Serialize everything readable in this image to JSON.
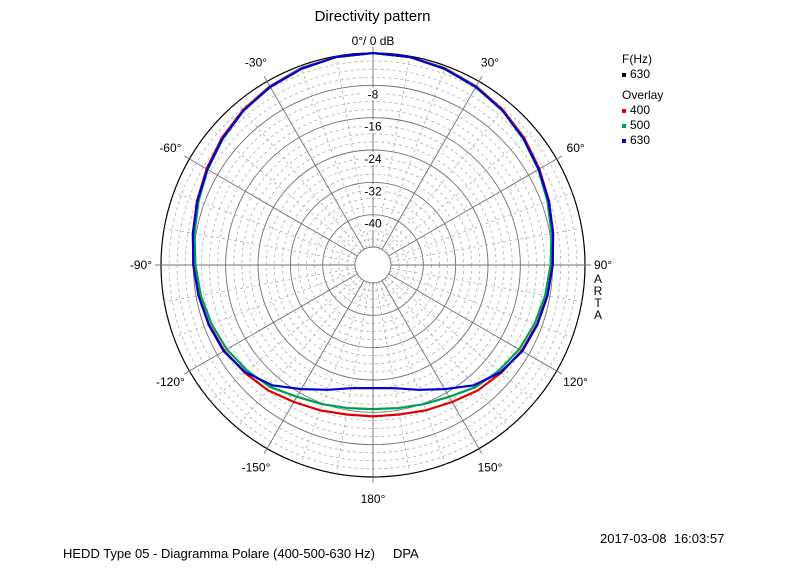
{
  "title": "Directivity pattern",
  "legend": {
    "freq_header": "F(Hz)",
    "freq_value": "630",
    "overlay_header": "Overlay",
    "items": [
      {
        "label": "400",
        "color": "#e00000"
      },
      {
        "label": "500",
        "color": "#00a050"
      },
      {
        "label": "630",
        "color": "#0000d0"
      }
    ]
  },
  "side_label": [
    "A",
    "R",
    "T",
    "A"
  ],
  "timestamp": "2017-03-08  16:03:57",
  "footer": "HEDD Type 05 - Diagramma Polare (400-500-630 Hz)     DPA",
  "chart_data": {
    "type": "polar",
    "title": "Directivity pattern",
    "radial_unit": "dB",
    "radial_range": [
      -48,
      0
    ],
    "radial_ticks": [
      {
        "value": 0,
        "label": "0°/ 0 dB"
      },
      {
        "value": -8,
        "label": "-8"
      },
      {
        "value": -16,
        "label": "-16"
      },
      {
        "value": -24,
        "label": "-24"
      },
      {
        "value": -32,
        "label": "-32"
      },
      {
        "value": -40,
        "label": "-40"
      }
    ],
    "angle_ticks": [
      {
        "angle": 30,
        "label": "30°"
      },
      {
        "angle": 60,
        "label": "60°"
      },
      {
        "angle": 90,
        "label": "90°"
      },
      {
        "angle": 120,
        "label": "120°"
      },
      {
        "angle": 150,
        "label": "150°"
      },
      {
        "angle": 180,
        "label": "180°"
      },
      {
        "angle": -150,
        "label": "-150°"
      },
      {
        "angle": -120,
        "label": "-120°"
      },
      {
        "angle": -90,
        "label": "-90°"
      },
      {
        "angle": -60,
        "label": "-60°"
      },
      {
        "angle": -30,
        "label": "-30°"
      }
    ],
    "angles_deg": [
      0,
      10,
      20,
      30,
      40,
      50,
      60,
      70,
      80,
      90,
      100,
      110,
      120,
      130,
      140,
      150,
      160,
      170,
      180
    ],
    "series": [
      {
        "name": "400",
        "color": "#e00000",
        "values_db": [
          0,
          -0.2,
          -0.6,
          -1.4,
          -2.4,
          -3.6,
          -4.9,
          -6.1,
          -7.2,
          -8.0,
          -8.7,
          -9.3,
          -10.0,
          -11.0,
          -12.0,
          -13.3,
          -14.2,
          -14.9,
          -15.0
        ]
      },
      {
        "name": "500",
        "color": "#00a050",
        "values_db": [
          0,
          -0.2,
          -0.7,
          -1.5,
          -2.6,
          -3.9,
          -5.2,
          -6.5,
          -7.6,
          -8.5,
          -9.2,
          -9.9,
          -10.7,
          -11.8,
          -13.0,
          -14.8,
          -15.8,
          -16.5,
          -16.8
        ]
      },
      {
        "name": "630",
        "color": "#0000d0",
        "values_db": [
          0,
          -0.2,
          -0.8,
          -1.6,
          -2.6,
          -3.8,
          -5.1,
          -6.2,
          -7.2,
          -8.0,
          -8.6,
          -9.2,
          -9.8,
          -11.2,
          -13.6,
          -17.0,
          -19.6,
          -21.5,
          -22.0
        ]
      }
    ],
    "grid": true
  }
}
